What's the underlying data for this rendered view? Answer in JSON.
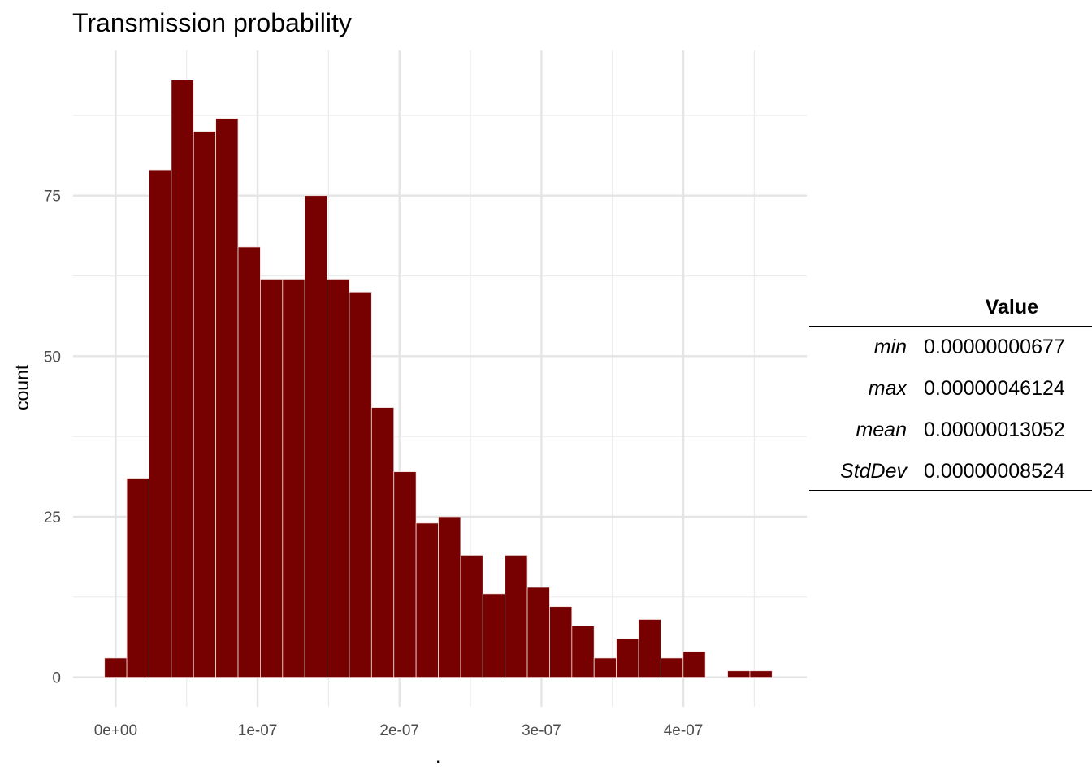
{
  "chart_data": {
    "type": "bar",
    "title": "Transmission probability",
    "xlabel": ".",
    "ylabel": "count",
    "bin_width": 1.568e-08,
    "first_bin_center": 0,
    "counts": [
      3,
      31,
      79,
      93,
      85,
      87,
      67,
      62,
      62,
      75,
      62,
      60,
      42,
      32,
      24,
      25,
      19,
      13,
      19,
      14,
      11,
      8,
      3,
      6,
      9,
      3,
      4,
      0,
      1,
      1
    ],
    "x_ticks": [
      0,
      1e-07,
      2e-07,
      3e-07,
      4e-07
    ],
    "x_tick_labels": [
      "0e+00",
      "1e-07",
      "2e-07",
      "3e-07",
      "4e-07"
    ],
    "y_ticks": [
      0,
      25,
      50,
      75
    ],
    "y_tick_labels": [
      "0",
      "25",
      "50",
      "75"
    ],
    "xlim": [
      -3e-08,
      4.87e-07
    ],
    "ylim": [
      -4.6,
      97.6
    ],
    "grid": true,
    "bar_color": "#770000"
  },
  "stats_table": {
    "header": "Value",
    "rows": [
      {
        "label": "min",
        "value": "0.00000000677"
      },
      {
        "label": "max",
        "value": "0.00000046124"
      },
      {
        "label": "mean",
        "value": "0.00000013052"
      },
      {
        "label": "StdDev",
        "value": "0.00000008524"
      }
    ]
  }
}
